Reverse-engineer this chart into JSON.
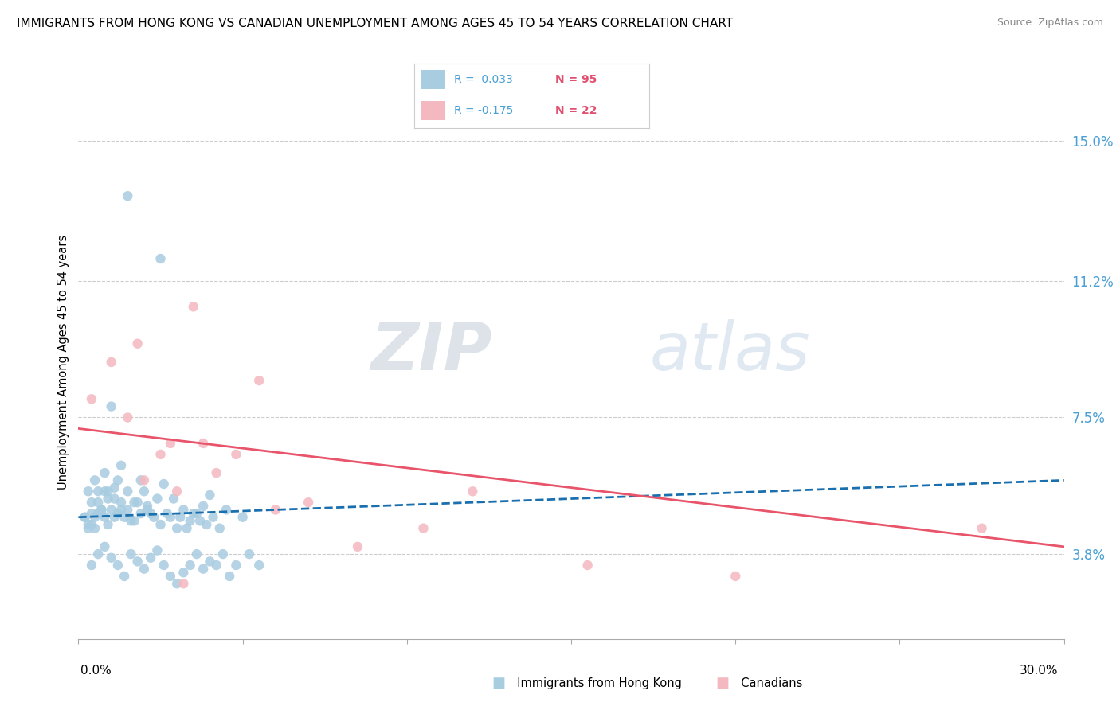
{
  "title": "IMMIGRANTS FROM HONG KONG VS CANADIAN UNEMPLOYMENT AMONG AGES 45 TO 54 YEARS CORRELATION CHART",
  "source": "Source: ZipAtlas.com",
  "ylabel": "Unemployment Among Ages 45 to 54 years",
  "right_yticks": [
    3.8,
    7.5,
    11.2,
    15.0
  ],
  "right_ytick_labels": [
    "3.8%",
    "7.5%",
    "11.2%",
    "15.0%"
  ],
  "xlim": [
    0.0,
    30.0
  ],
  "ylim": [
    1.5,
    16.5
  ],
  "series1_label": "Immigrants from Hong Kong",
  "series2_label": "Canadians",
  "series1_color": "#a8cce0",
  "series2_color": "#f4b8c0",
  "trendline1_color": "#1a6faf",
  "trendline2_color": "#e8546a",
  "watermark_zip": "ZIP",
  "watermark_atlas": "atlas",
  "blue_scatter_x": [
    1.5,
    2.5,
    0.3,
    0.5,
    0.8,
    1.0,
    0.4,
    0.7,
    0.6,
    0.9,
    1.1,
    1.3,
    1.2,
    0.2,
    0.4,
    0.6,
    0.8,
    1.0,
    1.4,
    1.6,
    1.8,
    2.0,
    2.2,
    2.4,
    2.6,
    2.8,
    3.0,
    3.2,
    3.4,
    3.6,
    3.8,
    4.0,
    4.5,
    5.0,
    0.3,
    0.5,
    0.7,
    0.9,
    1.1,
    1.3,
    1.5,
    1.7,
    1.9,
    2.1,
    2.3,
    2.5,
    2.7,
    2.9,
    3.1,
    3.3,
    3.5,
    3.7,
    3.9,
    4.1,
    4.3,
    0.4,
    0.6,
    0.8,
    1.0,
    1.2,
    1.4,
    1.6,
    1.8,
    2.0,
    2.2,
    2.4,
    2.6,
    2.8,
    3.0,
    3.2,
    3.4,
    3.6,
    3.8,
    4.0,
    4.2,
    4.4,
    4.6,
    4.8,
    5.2,
    5.5,
    0.2,
    0.3,
    0.5,
    0.4,
    0.6,
    0.7,
    0.8,
    0.9,
    1.1,
    1.2,
    1.3,
    1.5,
    1.7,
    1.9,
    2.1
  ],
  "blue_scatter_y": [
    13.5,
    11.8,
    5.5,
    5.8,
    6.0,
    7.8,
    5.2,
    4.9,
    5.5,
    5.3,
    5.6,
    6.2,
    5.8,
    4.8,
    4.6,
    4.9,
    5.5,
    5.0,
    4.8,
    4.7,
    5.2,
    5.5,
    4.9,
    5.3,
    5.7,
    4.8,
    4.5,
    5.0,
    4.7,
    4.9,
    5.1,
    5.4,
    5.0,
    4.8,
    4.5,
    4.8,
    5.0,
    4.6,
    4.8,
    5.2,
    5.0,
    4.7,
    4.9,
    5.1,
    4.8,
    4.6,
    4.9,
    5.3,
    4.8,
    4.5,
    4.9,
    4.7,
    4.6,
    4.8,
    4.5,
    3.5,
    3.8,
    4.0,
    3.7,
    3.5,
    3.2,
    3.8,
    3.6,
    3.4,
    3.7,
    3.9,
    3.5,
    3.2,
    3.0,
    3.3,
    3.5,
    3.8,
    3.4,
    3.6,
    3.5,
    3.8,
    3.2,
    3.5,
    3.8,
    3.5,
    4.8,
    4.6,
    4.5,
    4.9,
    5.2,
    5.0,
    4.8,
    5.5,
    5.3,
    4.9,
    5.0,
    5.5,
    5.2,
    5.8,
    5.0
  ],
  "pink_scatter_x": [
    1.8,
    3.5,
    5.5,
    0.4,
    1.5,
    2.5,
    3.8,
    4.2,
    4.8,
    2.0,
    3.0,
    7.0,
    12.0,
    15.5,
    20.0,
    27.5,
    1.0,
    2.8,
    6.0,
    8.5,
    10.5,
    3.2
  ],
  "pink_scatter_y": [
    9.5,
    10.5,
    8.5,
    8.0,
    7.5,
    6.5,
    6.8,
    6.0,
    6.5,
    5.8,
    5.5,
    5.2,
    5.5,
    3.5,
    3.2,
    4.5,
    9.0,
    6.8,
    5.0,
    4.0,
    4.5,
    3.0
  ],
  "trendline1_x": [
    0.0,
    30.0
  ],
  "trendline1_y_start": 4.8,
  "trendline1_y_end": 5.8,
  "trendline2_x": [
    0.0,
    30.0
  ],
  "trendline2_y_start": 7.2,
  "trendline2_y_end": 4.0
}
